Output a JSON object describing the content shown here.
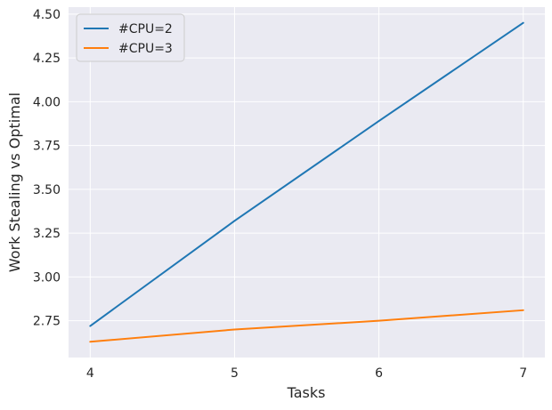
{
  "chart_data": {
    "type": "line",
    "title": "",
    "xlabel": "Tasks",
    "ylabel": "Work Stealing vs Optimal",
    "x": [
      4,
      5,
      6,
      7
    ],
    "x_ticks": [
      "4",
      "5",
      "6",
      "7"
    ],
    "y_ticks": [
      "2.75",
      "3.00",
      "3.25",
      "3.50",
      "3.75",
      "4.00",
      "4.25",
      "4.50"
    ],
    "xlim": [
      3.85,
      7.15
    ],
    "ylim": [
      2.54,
      4.54
    ],
    "grid": true,
    "legend_position": "top-left",
    "series": [
      {
        "name": "#CPU=2",
        "color": "#1f77b4",
        "values": [
          2.72,
          3.32,
          3.89,
          4.45
        ]
      },
      {
        "name": "#CPU=3",
        "color": "#ff7f0e",
        "values": [
          2.63,
          2.7,
          2.75,
          2.81
        ]
      }
    ]
  }
}
